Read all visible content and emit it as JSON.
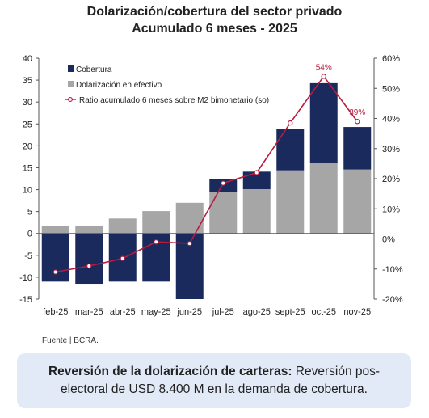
{
  "header": {
    "title_line1": "Dolarización/cobertura del sector privado",
    "title_line2": "Acumulado 6 meses - 2025"
  },
  "chart_data": {
    "type": "bar",
    "categories": [
      "feb-25",
      "mar-25",
      "abr-25",
      "may-25",
      "jun-25",
      "jul-25",
      "ago-25",
      "sept-25",
      "oct-25",
      "nov-25"
    ],
    "series": [
      {
        "name": "Cobertura",
        "kind": "stacked-bar",
        "color": "#1b2a5c",
        "values": [
          -11,
          -11.5,
          -11,
          -11,
          -15,
          3,
          4,
          9.5,
          18.3,
          9.7
        ]
      },
      {
        "name": "Dolarización en efectivo",
        "kind": "stacked-bar",
        "color": "#a6a6a6",
        "values": [
          1.7,
          1.8,
          3.4,
          5.1,
          7.0,
          9.4,
          10.1,
          14.4,
          16.0,
          14.6
        ]
      },
      {
        "name": "Ratio acumulado 6 meses sobre M2 bimonetario (so)",
        "kind": "line",
        "axis": "right",
        "color": "#b71c3f",
        "values": [
          -11,
          -9,
          -6.5,
          -1,
          -1.5,
          18.5,
          22,
          38.5,
          54,
          39
        ]
      }
    ],
    "net_values": [
      -9.3,
      -9.7,
      -7.6,
      -5.9,
      -8.0,
      12.4,
      14.1,
      23.9,
      34.3,
      24.3
    ],
    "y_left": {
      "min": -15,
      "max": 40,
      "step": 5,
      "ticks": [
        "-15",
        "-10",
        "-5",
        "0",
        "5",
        "10",
        "15",
        "20",
        "25",
        "30",
        "35",
        "40"
      ]
    },
    "y_right": {
      "min": -20,
      "max": 60,
      "step": 10,
      "ticks": [
        "-20%",
        "-10%",
        "0%",
        "10%",
        "20%",
        "30%",
        "40%",
        "50%",
        "60%"
      ]
    },
    "data_labels": [
      {
        "index": 8,
        "text": "54%"
      },
      {
        "index": 9,
        "text": "39%"
      }
    ],
    "legend_position": "top-left",
    "grid": false
  },
  "footer": {
    "source": "Fuente | BCRA."
  },
  "callout": {
    "bold_text": "Reversión de la dolarización de carteras:",
    "text": " Reversión pos-electoral de USD 8.400 M en la demanda de cobertura."
  }
}
